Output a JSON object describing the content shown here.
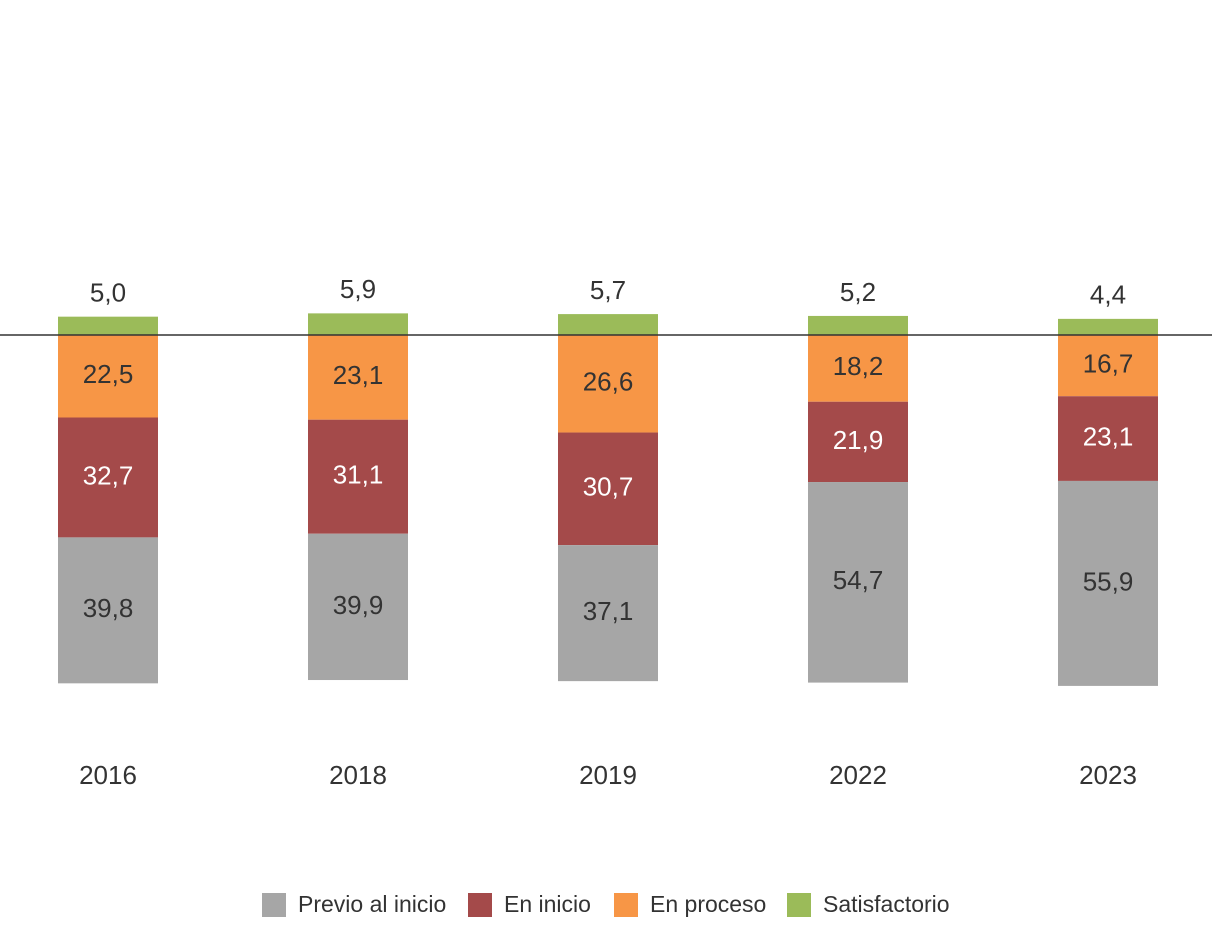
{
  "chart_data": {
    "type": "bar",
    "categories": [
      "2016",
      "2018",
      "2019",
      "2022",
      "2023"
    ],
    "series": [
      {
        "name": "Previo al inicio",
        "color": "#a6a6a6",
        "label_color": "#333333",
        "values": [
          39.8,
          39.9,
          37.1,
          54.7,
          55.9
        ],
        "value_labels": [
          "39,8",
          "39,9",
          "37,1",
          "54,7",
          "55,9"
        ]
      },
      {
        "name": "En inicio",
        "color": "#a44a4a",
        "label_color": "#ffffff",
        "values": [
          32.7,
          31.1,
          30.7,
          21.9,
          23.1
        ],
        "value_labels": [
          "32,7",
          "31,1",
          "30,7",
          "21,9",
          "23,1"
        ]
      },
      {
        "name": "En proceso",
        "color": "#f79646",
        "label_color": "#333333",
        "values": [
          22.5,
          23.1,
          26.6,
          18.2,
          16.7
        ],
        "value_labels": [
          "22,5",
          "23,1",
          "26,6",
          "18,2",
          "16,7"
        ]
      },
      {
        "name": "Satisfactorio",
        "color": "#9bbb59",
        "label_color": "#333333",
        "values": [
          5.0,
          5.9,
          5.7,
          5.2,
          4.4
        ],
        "value_labels": [
          "5,0",
          "5,9",
          "5,7",
          "5,2",
          "4,4"
        ]
      }
    ],
    "ylim": [
      -120,
      60
    ]
  }
}
